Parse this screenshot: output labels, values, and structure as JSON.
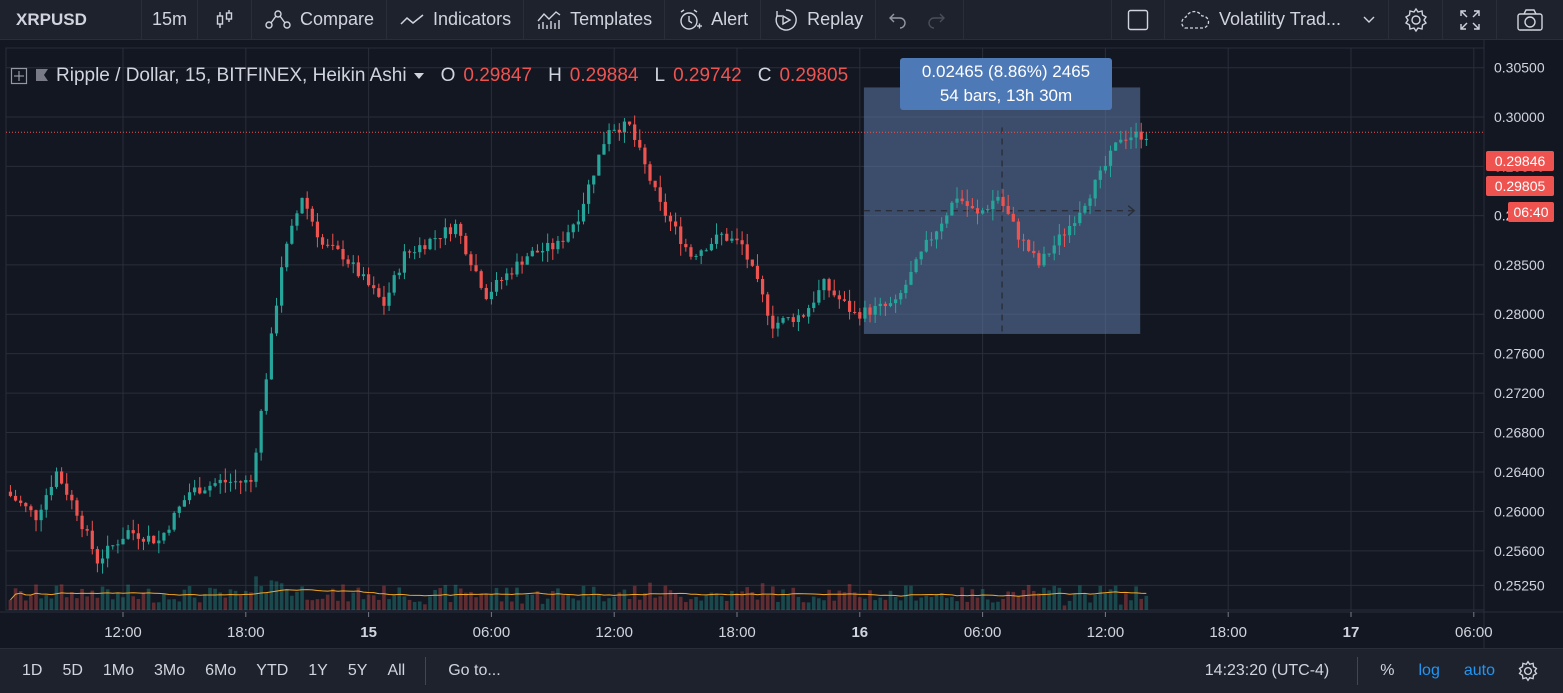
{
  "toolbar": {
    "symbol": "XRPUSD",
    "interval": "15m",
    "compare": "Compare",
    "indicators": "Indicators",
    "templates": "Templates",
    "alert": "Alert",
    "replay": "Replay",
    "layout_name": "Volatility Trad..."
  },
  "legend": {
    "title": "Ripple / Dollar, 15, BITFINEX, Heikin Ashi",
    "o_label": "O",
    "o_value": "0.29847",
    "h_label": "H",
    "h_value": "0.29884",
    "l_label": "L",
    "l_value": "0.29742",
    "c_label": "C",
    "c_value": "0.29805"
  },
  "measure": {
    "line1": "0.02465 (8.86%) 2465",
    "line2": "54 bars, 13h 30m"
  },
  "price_axis": {
    "ticks": [
      "0.30500",
      "0.30000",
      "0.29500",
      "0.29000",
      "0.28500",
      "0.28000",
      "0.27600",
      "0.27200",
      "0.26800",
      "0.26400",
      "0.26000",
      "0.25600",
      "0.25250"
    ],
    "tag_high": "0.29846",
    "tag_close": "0.29805",
    "tag_countdown": "06:40"
  },
  "time_axis": {
    "ticks": [
      "12:00",
      "18:00",
      "15",
      "06:00",
      "12:00",
      "18:00",
      "16",
      "06:00",
      "12:00",
      "18:00",
      "17",
      "06:00"
    ]
  },
  "bottombar": {
    "ranges": [
      "1D",
      "5D",
      "1Mo",
      "3Mo",
      "6Mo",
      "YTD",
      "1Y",
      "5Y",
      "All"
    ],
    "goto": "Go to...",
    "clock": "14:23:20 (UTC-4)",
    "percent": "%",
    "log": "log",
    "auto": "auto"
  },
  "colors": {
    "up": "#26a69a",
    "down": "#ef5350",
    "background": "#131722",
    "accent": "#2196f3",
    "measure_box": "#5d7aa8"
  },
  "chart_data": {
    "type": "candlestick",
    "symbol": "XRPUSD",
    "exchange": "BITFINEX",
    "interval": "15",
    "style": "Heikin Ashi",
    "ylim": [
      0.25,
      0.307
    ],
    "price_path": [
      {
        "t": "14 06:30",
        "p": 0.262
      },
      {
        "t": "14 08:00",
        "p": 0.2595
      },
      {
        "t": "14 09:00",
        "p": 0.264
      },
      {
        "t": "14 10:00",
        "p": 0.26
      },
      {
        "t": "14 11:00",
        "p": 0.255
      },
      {
        "t": "14 12:30",
        "p": 0.258
      },
      {
        "t": "14 14:00",
        "p": 0.257
      },
      {
        "t": "14 15:30",
        "p": 0.262
      },
      {
        "t": "14 17:00",
        "p": 0.263
      },
      {
        "t": "14 18:30",
        "p": 0.263
      },
      {
        "t": "14 19:00",
        "p": 0.27
      },
      {
        "t": "14 20:00",
        "p": 0.285
      },
      {
        "t": "14 21:00",
        "p": 0.292
      },
      {
        "t": "14 22:00",
        "p": 0.287
      },
      {
        "t": "14 23:00",
        "p": 0.286
      },
      {
        "t": "15 01:00",
        "p": 0.281
      },
      {
        "t": "15 02:00",
        "p": 0.286
      },
      {
        "t": "15 04:30",
        "p": 0.289
      },
      {
        "t": "15 06:00",
        "p": 0.282
      },
      {
        "t": "15 08:00",
        "p": 0.286
      },
      {
        "t": "15 09:30",
        "p": 0.287
      },
      {
        "t": "15 10:30",
        "p": 0.29
      },
      {
        "t": "15 12:00",
        "p": 0.299
      },
      {
        "t": "15 13:00",
        "p": 0.299
      },
      {
        "t": "15 14:30",
        "p": 0.291
      },
      {
        "t": "15 16:00",
        "p": 0.286
      },
      {
        "t": "15 17:30",
        "p": 0.288
      },
      {
        "t": "15 18:30",
        "p": 0.287
      },
      {
        "t": "15 20:00",
        "p": 0.279
      },
      {
        "t": "15 21:30",
        "p": 0.28
      },
      {
        "t": "15 22:30",
        "p": 0.283
      },
      {
        "t": "16 00:00",
        "p": 0.28
      },
      {
        "t": "16 02:00",
        "p": 0.281
      },
      {
        "t": "16 03:30",
        "p": 0.287
      },
      {
        "t": "16 05:00",
        "p": 0.292
      },
      {
        "t": "16 06:00",
        "p": 0.29
      },
      {
        "t": "16 07:00",
        "p": 0.292
      },
      {
        "t": "16 08:00",
        "p": 0.288
      },
      {
        "t": "16 09:00",
        "p": 0.285
      },
      {
        "t": "16 10:30",
        "p": 0.289
      },
      {
        "t": "16 12:00",
        "p": 0.294
      },
      {
        "t": "16 13:00",
        "p": 0.298
      },
      {
        "t": "16 14:00",
        "p": 0.2982
      }
    ],
    "volume": "shown",
    "moving_average": "shown",
    "grid": true,
    "measure_range": {
      "from_price": 0.278,
      "to_price": 0.303,
      "change": 0.02465,
      "change_pct": 8.86,
      "bars": 54,
      "duration": "13h 30m"
    }
  }
}
